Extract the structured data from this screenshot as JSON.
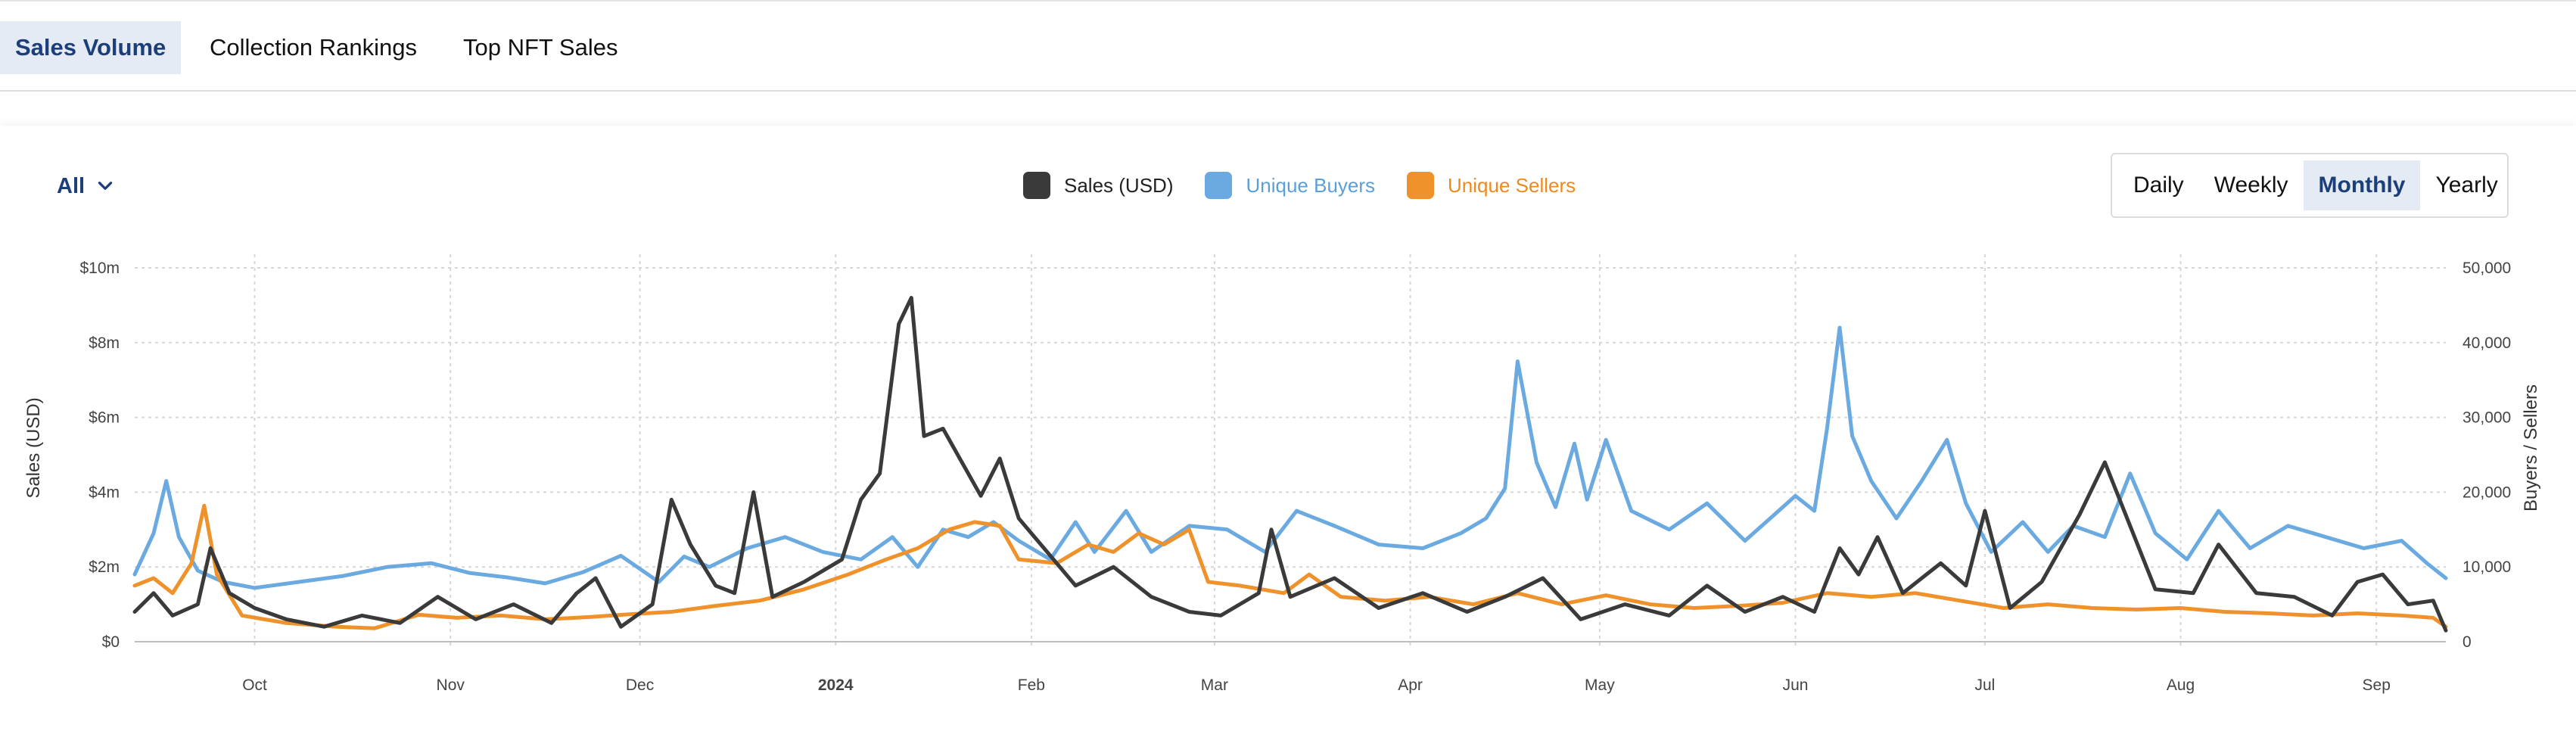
{
  "tabs": [
    {
      "label": "Sales Volume",
      "active": true
    },
    {
      "label": "Collection Rankings",
      "active": false
    },
    {
      "label": "Top NFT Sales",
      "active": false
    }
  ],
  "filter": {
    "label": "All"
  },
  "range_buttons": [
    {
      "label": "Daily",
      "active": false
    },
    {
      "label": "Weekly",
      "active": false
    },
    {
      "label": "Monthly",
      "active": true
    },
    {
      "label": "Yearly",
      "active": false
    }
  ],
  "colors": {
    "sales": "#3a3a3a",
    "buyers": "#6aaae0",
    "sellers": "#f0922c",
    "accent": "#1c3f7a"
  },
  "chart_data": {
    "type": "line",
    "x_tick_labels": [
      "Oct",
      "Nov",
      "Dec",
      "2024",
      "Feb",
      "Mar",
      "Apr",
      "May",
      "Jun",
      "Jul",
      "Aug",
      "Sep"
    ],
    "x_tick_dates": [
      "2023-10-01",
      "2023-11-01",
      "2023-12-01",
      "2024-01-01",
      "2024-02-01",
      "2024-03-01",
      "2024-04-01",
      "2024-05-01",
      "2024-06-01",
      "2024-07-01",
      "2024-08-01",
      "2024-09-01"
    ],
    "x_range": [
      "2023-09-12",
      "2024-09-12"
    ],
    "y_left": {
      "label": "Sales (USD)",
      "range": [
        0,
        10000000
      ],
      "ticks": [
        0,
        2000000,
        4000000,
        6000000,
        8000000,
        10000000
      ],
      "tick_labels": [
        "$0",
        "$2m",
        "$4m",
        "$6m",
        "$8m",
        "$10m"
      ]
    },
    "y_right": {
      "label": "Buyers / Sellers",
      "range": [
        0,
        50000
      ],
      "ticks": [
        0,
        10000,
        20000,
        30000,
        40000,
        50000
      ],
      "tick_labels": [
        "0",
        "10,000",
        "20,000",
        "30,000",
        "40,000",
        "50,000"
      ]
    },
    "grid": true,
    "series": [
      {
        "name": "Sales (USD)",
        "axis": "left",
        "color": "#3a3a3a",
        "points": [
          [
            "2023-09-12",
            800000
          ],
          [
            "2023-09-15",
            1300000
          ],
          [
            "2023-09-18",
            700000
          ],
          [
            "2023-09-22",
            1000000
          ],
          [
            "2023-09-24",
            2500000
          ],
          [
            "2023-09-27",
            1300000
          ],
          [
            "2023-10-01",
            900000
          ],
          [
            "2023-10-06",
            600000
          ],
          [
            "2023-10-12",
            400000
          ],
          [
            "2023-10-18",
            700000
          ],
          [
            "2023-10-24",
            500000
          ],
          [
            "2023-10-30",
            1200000
          ],
          [
            "2023-11-05",
            600000
          ],
          [
            "2023-11-11",
            1000000
          ],
          [
            "2023-11-17",
            500000
          ],
          [
            "2023-11-21",
            1300000
          ],
          [
            "2023-11-24",
            1700000
          ],
          [
            "2023-11-28",
            400000
          ],
          [
            "2023-12-03",
            1000000
          ],
          [
            "2023-12-06",
            3800000
          ],
          [
            "2023-12-09",
            2600000
          ],
          [
            "2023-12-13",
            1500000
          ],
          [
            "2023-12-16",
            1300000
          ],
          [
            "2023-12-19",
            4000000
          ],
          [
            "2023-12-22",
            1200000
          ],
          [
            "2023-12-27",
            1600000
          ],
          [
            "2024-01-02",
            2200000
          ],
          [
            "2024-01-05",
            3800000
          ],
          [
            "2024-01-08",
            4500000
          ],
          [
            "2024-01-11",
            8500000
          ],
          [
            "2024-01-13",
            9200000
          ],
          [
            "2024-01-15",
            5500000
          ],
          [
            "2024-01-18",
            5700000
          ],
          [
            "2024-01-21",
            4800000
          ],
          [
            "2024-01-24",
            3900000
          ],
          [
            "2024-01-27",
            4900000
          ],
          [
            "2024-01-30",
            3300000
          ],
          [
            "2024-02-03",
            2500000
          ],
          [
            "2024-02-08",
            1500000
          ],
          [
            "2024-02-14",
            2000000
          ],
          [
            "2024-02-20",
            1200000
          ],
          [
            "2024-02-26",
            800000
          ],
          [
            "2024-03-02",
            700000
          ],
          [
            "2024-03-08",
            1300000
          ],
          [
            "2024-03-10",
            3000000
          ],
          [
            "2024-03-13",
            1200000
          ],
          [
            "2024-03-20",
            1700000
          ],
          [
            "2024-03-27",
            900000
          ],
          [
            "2024-04-03",
            1300000
          ],
          [
            "2024-04-10",
            800000
          ],
          [
            "2024-04-16",
            1200000
          ],
          [
            "2024-04-22",
            1700000
          ],
          [
            "2024-04-28",
            600000
          ],
          [
            "2024-05-05",
            1000000
          ],
          [
            "2024-05-12",
            700000
          ],
          [
            "2024-05-18",
            1500000
          ],
          [
            "2024-05-24",
            800000
          ],
          [
            "2024-05-30",
            1200000
          ],
          [
            "2024-06-04",
            800000
          ],
          [
            "2024-06-08",
            2500000
          ],
          [
            "2024-06-11",
            1800000
          ],
          [
            "2024-06-14",
            2800000
          ],
          [
            "2024-06-18",
            1300000
          ],
          [
            "2024-06-24",
            2100000
          ],
          [
            "2024-06-28",
            1500000
          ],
          [
            "2024-07-01",
            3500000
          ],
          [
            "2024-07-05",
            900000
          ],
          [
            "2024-07-10",
            1600000
          ],
          [
            "2024-07-16",
            3400000
          ],
          [
            "2024-07-20",
            4800000
          ],
          [
            "2024-07-24",
            3100000
          ],
          [
            "2024-07-28",
            1400000
          ],
          [
            "2024-08-03",
            1300000
          ],
          [
            "2024-08-07",
            2600000
          ],
          [
            "2024-08-13",
            1300000
          ],
          [
            "2024-08-19",
            1200000
          ],
          [
            "2024-08-25",
            700000
          ],
          [
            "2024-08-29",
            1600000
          ],
          [
            "2024-09-02",
            1800000
          ],
          [
            "2024-09-06",
            1000000
          ],
          [
            "2024-09-10",
            1100000
          ],
          [
            "2024-09-12",
            300000
          ]
        ]
      },
      {
        "name": "Unique Buyers",
        "axis": "right",
        "color": "#6aaae0",
        "points": [
          [
            "2023-09-12",
            9000
          ],
          [
            "2023-09-15",
            14500
          ],
          [
            "2023-09-17",
            21500
          ],
          [
            "2023-09-19",
            14000
          ],
          [
            "2023-09-22",
            9500
          ],
          [
            "2023-09-26",
            8000
          ],
          [
            "2023-10-01",
            7200
          ],
          [
            "2023-10-08",
            8000
          ],
          [
            "2023-10-15",
            8800
          ],
          [
            "2023-10-22",
            10000
          ],
          [
            "2023-10-29",
            10500
          ],
          [
            "2023-11-04",
            9200
          ],
          [
            "2023-11-10",
            8600
          ],
          [
            "2023-11-16",
            7800
          ],
          [
            "2023-11-22",
            9300
          ],
          [
            "2023-11-28",
            11500
          ],
          [
            "2023-12-04",
            8000
          ],
          [
            "2023-12-08",
            11400
          ],
          [
            "2023-12-12",
            10000
          ],
          [
            "2023-12-18",
            12500
          ],
          [
            "2023-12-24",
            14000
          ],
          [
            "2023-12-30",
            12000
          ],
          [
            "2024-01-05",
            11000
          ],
          [
            "2024-01-10",
            14000
          ],
          [
            "2024-01-14",
            10000
          ],
          [
            "2024-01-18",
            15000
          ],
          [
            "2024-01-22",
            14000
          ],
          [
            "2024-01-26",
            16000
          ],
          [
            "2024-01-30",
            13500
          ],
          [
            "2024-02-04",
            11000
          ],
          [
            "2024-02-08",
            16000
          ],
          [
            "2024-02-11",
            12000
          ],
          [
            "2024-02-16",
            17500
          ],
          [
            "2024-02-20",
            12000
          ],
          [
            "2024-02-26",
            15500
          ],
          [
            "2024-03-03",
            15000
          ],
          [
            "2024-03-09",
            12000
          ],
          [
            "2024-03-14",
            17500
          ],
          [
            "2024-03-20",
            15500
          ],
          [
            "2024-03-27",
            13000
          ],
          [
            "2024-04-03",
            12500
          ],
          [
            "2024-04-09",
            14500
          ],
          [
            "2024-04-13",
            16500
          ],
          [
            "2024-04-16",
            20500
          ],
          [
            "2024-04-18",
            37500
          ],
          [
            "2024-04-21",
            24000
          ],
          [
            "2024-04-24",
            18000
          ],
          [
            "2024-04-27",
            26500
          ],
          [
            "2024-04-29",
            19000
          ],
          [
            "2024-05-02",
            27000
          ],
          [
            "2024-05-06",
            17500
          ],
          [
            "2024-05-12",
            15000
          ],
          [
            "2024-05-18",
            18500
          ],
          [
            "2024-05-24",
            13500
          ],
          [
            "2024-05-28",
            16500
          ],
          [
            "2024-06-01",
            19500
          ],
          [
            "2024-06-04",
            17500
          ],
          [
            "2024-06-06",
            28500
          ],
          [
            "2024-06-08",
            42000
          ],
          [
            "2024-06-10",
            27500
          ],
          [
            "2024-06-13",
            21500
          ],
          [
            "2024-06-17",
            16500
          ],
          [
            "2024-06-21",
            21500
          ],
          [
            "2024-06-25",
            27000
          ],
          [
            "2024-06-28",
            18500
          ],
          [
            "2024-07-02",
            12000
          ],
          [
            "2024-07-07",
            16000
          ],
          [
            "2024-07-11",
            12000
          ],
          [
            "2024-07-15",
            15500
          ],
          [
            "2024-07-20",
            14000
          ],
          [
            "2024-07-24",
            22500
          ],
          [
            "2024-07-28",
            14500
          ],
          [
            "2024-08-02",
            11000
          ],
          [
            "2024-08-07",
            17500
          ],
          [
            "2024-08-12",
            12500
          ],
          [
            "2024-08-18",
            15500
          ],
          [
            "2024-08-24",
            14000
          ],
          [
            "2024-08-30",
            12500
          ],
          [
            "2024-09-05",
            13500
          ],
          [
            "2024-09-09",
            10500
          ],
          [
            "2024-09-12",
            8500
          ]
        ]
      },
      {
        "name": "Unique Sellers",
        "axis": "right",
        "color": "#f0922c",
        "points": [
          [
            "2023-09-12",
            7500
          ],
          [
            "2023-09-15",
            8500
          ],
          [
            "2023-09-18",
            6500
          ],
          [
            "2023-09-21",
            10500
          ],
          [
            "2023-09-23",
            18200
          ],
          [
            "2023-09-25",
            9000
          ],
          [
            "2023-09-29",
            3500
          ],
          [
            "2023-10-06",
            2500
          ],
          [
            "2023-10-14",
            2000
          ],
          [
            "2023-10-20",
            1800
          ],
          [
            "2023-10-27",
            3600
          ],
          [
            "2023-11-02",
            3200
          ],
          [
            "2023-11-09",
            3500
          ],
          [
            "2023-11-16",
            3000
          ],
          [
            "2023-11-23",
            3300
          ],
          [
            "2023-11-30",
            3700
          ],
          [
            "2023-12-06",
            4000
          ],
          [
            "2023-12-13",
            4800
          ],
          [
            "2023-12-20",
            5500
          ],
          [
            "2023-12-27",
            7000
          ],
          [
            "2024-01-03",
            9000
          ],
          [
            "2024-01-09",
            11000
          ],
          [
            "2024-01-14",
            12500
          ],
          [
            "2024-01-19",
            15000
          ],
          [
            "2024-01-23",
            16000
          ],
          [
            "2024-01-27",
            15500
          ],
          [
            "2024-01-30",
            11000
          ],
          [
            "2024-02-05",
            10500
          ],
          [
            "2024-02-10",
            13000
          ],
          [
            "2024-02-14",
            12000
          ],
          [
            "2024-02-18",
            14500
          ],
          [
            "2024-02-22",
            13000
          ],
          [
            "2024-02-26",
            15000
          ],
          [
            "2024-02-29",
            8000
          ],
          [
            "2024-03-05",
            7500
          ],
          [
            "2024-03-12",
            6500
          ],
          [
            "2024-03-16",
            9000
          ],
          [
            "2024-03-21",
            6000
          ],
          [
            "2024-03-28",
            5500
          ],
          [
            "2024-04-04",
            6000
          ],
          [
            "2024-04-11",
            5000
          ],
          [
            "2024-04-18",
            6500
          ],
          [
            "2024-04-25",
            5000
          ],
          [
            "2024-05-02",
            6200
          ],
          [
            "2024-05-09",
            5000
          ],
          [
            "2024-05-16",
            4500
          ],
          [
            "2024-05-23",
            4800
          ],
          [
            "2024-05-30",
            5200
          ],
          [
            "2024-06-06",
            6500
          ],
          [
            "2024-06-13",
            6000
          ],
          [
            "2024-06-20",
            6500
          ],
          [
            "2024-06-27",
            5500
          ],
          [
            "2024-07-04",
            4500
          ],
          [
            "2024-07-11",
            5000
          ],
          [
            "2024-07-18",
            4500
          ],
          [
            "2024-07-25",
            4300
          ],
          [
            "2024-08-01",
            4500
          ],
          [
            "2024-08-08",
            4000
          ],
          [
            "2024-08-15",
            3800
          ],
          [
            "2024-08-22",
            3500
          ],
          [
            "2024-08-29",
            3800
          ],
          [
            "2024-09-05",
            3500
          ],
          [
            "2024-09-10",
            3200
          ],
          [
            "2024-09-12",
            2000
          ]
        ]
      }
    ]
  }
}
